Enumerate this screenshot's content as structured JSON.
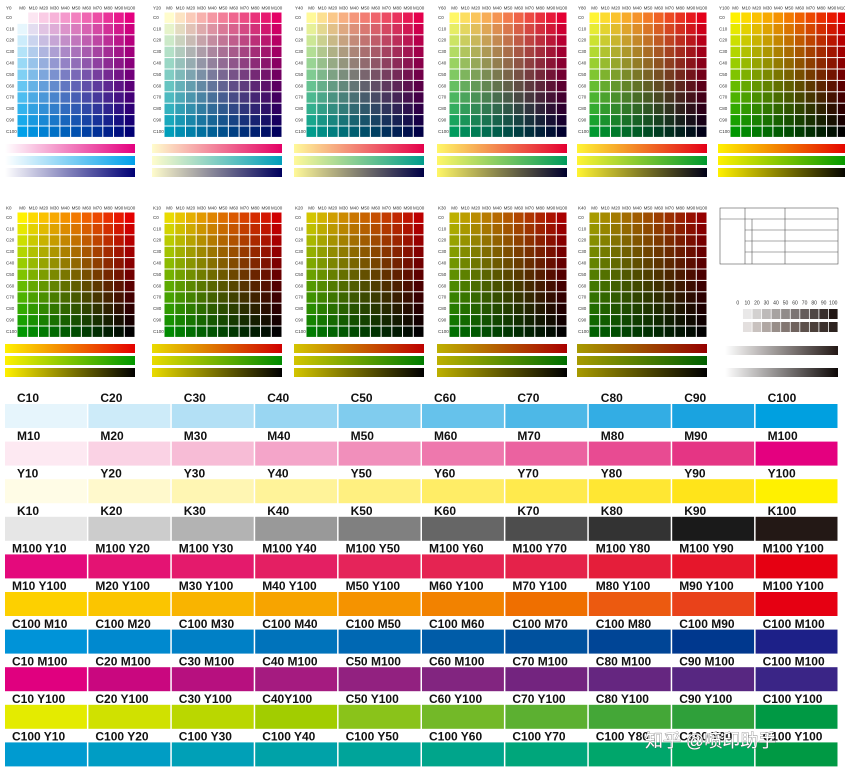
{
  "grid_sets": [
    {
      "column_channel": "M",
      "row_channel": "C",
      "fixed_channel": "Y",
      "fixed": {},
      "values": [
        0,
        10,
        20,
        30,
        40,
        50,
        60,
        70,
        80,
        90,
        100
      ],
      "column_labels": [
        "M0",
        "M10",
        "M20",
        "M30",
        "M40",
        "M50",
        "M60",
        "M70",
        "M80",
        "M90",
        "M100"
      ],
      "row_labels": [
        "C0",
        "C10",
        "C20",
        "C30",
        "C40",
        "C50",
        "C60",
        "C70",
        "C80",
        "C90",
        "C100"
      ],
      "grids": [
        {
          "value": 0,
          "label": "Y0"
        },
        {
          "value": 20,
          "label": "Y20"
        },
        {
          "value": 40,
          "label": "Y40"
        },
        {
          "value": 60,
          "label": "Y60"
        },
        {
          "value": 80,
          "label": "Y80"
        },
        {
          "value": 100,
          "label": "Y100"
        }
      ]
    },
    {
      "column_channel": "M",
      "row_channel": "C",
      "fixed_channel": "K",
      "fixed": {
        "Y": 100
      },
      "values": [
        0,
        10,
        20,
        30,
        40,
        50,
        60,
        70,
        80,
        90,
        100
      ],
      "column_labels": [
        "M0",
        "M10",
        "M20",
        "M30",
        "M40",
        "M50",
        "M60",
        "M70",
        "M80",
        "M90",
        "M100"
      ],
      "row_labels": [
        "C0",
        "C10",
        "C20",
        "C30",
        "C40",
        "C50",
        "C60",
        "C70",
        "C80",
        "C90",
        "C100"
      ],
      "grids": [
        {
          "value": 0,
          "label": "K0"
        },
        {
          "value": 10,
          "label": "K10"
        },
        {
          "value": 20,
          "label": "K20"
        },
        {
          "value": 30,
          "label": "K30"
        },
        {
          "value": 40,
          "label": "K40"
        }
      ]
    }
  ],
  "gray_scale": {
    "ticks": [
      0,
      10,
      20,
      30,
      40,
      50,
      60,
      70,
      80,
      90,
      100
    ]
  },
  "strips": [
    {
      "labels": [
        "C10",
        "C20",
        "C30",
        "C40",
        "C50",
        "C60",
        "C70",
        "C80",
        "C90",
        "C100"
      ],
      "colors": [
        "#e6f5fc",
        "#cdebf9",
        "#b3e0f5",
        "#99d6f2",
        "#80ccee",
        "#66c2eb",
        "#4db8e7",
        "#33ade4",
        "#1aa3e0",
        "#00a0e0"
      ]
    },
    {
      "labels": [
        "M10",
        "M20",
        "M30",
        "M40",
        "M50",
        "M60",
        "M70",
        "M80",
        "M90",
        "M100"
      ],
      "colors": [
        "#fde9f2",
        "#fad2e4",
        "#f7bcd6",
        "#f4a5c9",
        "#f18fbb",
        "#ee78ad",
        "#eb62a0",
        "#e84b92",
        "#e53584",
        "#e4007f"
      ]
    },
    {
      "labels": [
        "Y10",
        "Y20",
        "Y30",
        "Y40",
        "Y50",
        "Y60",
        "Y70",
        "Y80",
        "Y90",
        "Y100"
      ],
      "colors": [
        "#fffce6",
        "#fff9cc",
        "#fff6b3",
        "#fff399",
        "#fff080",
        "#ffed66",
        "#ffea4d",
        "#ffe733",
        "#ffe41a",
        "#fff100"
      ]
    },
    {
      "labels": [
        "K10",
        "K20",
        "K30",
        "K40",
        "K50",
        "K60",
        "K70",
        "K80",
        "K90",
        "K100"
      ],
      "colors": [
        "#e6e6e6",
        "#cccccc",
        "#b3b3b3",
        "#999999",
        "#808080",
        "#666666",
        "#4d4d4d",
        "#333333",
        "#1a1a1a",
        "#231815"
      ]
    },
    {
      "labels": [
        "M100 Y10",
        "M100 Y20",
        "M100 Y30",
        "M100 Y40",
        "M100 Y50",
        "M100 Y60",
        "M100 Y70",
        "M100 Y80",
        "M100 Y90",
        "M100 Y100"
      ],
      "colors": [
        "#e40a7c",
        "#e41373",
        "#e41a6c",
        "#e41f63",
        "#e5245a",
        "#e52452",
        "#e5224a",
        "#e51e3a",
        "#e6162b",
        "#e60012"
      ]
    },
    {
      "labels": [
        "M10 Y100",
        "M20 Y100",
        "M30 Y100",
        "M40 Y100",
        "M50 Y100",
        "M60 Y100",
        "M70 Y100",
        "M80 Y100",
        "M90 Y100",
        "M100 Y100"
      ],
      "colors": [
        "#fdd000",
        "#fbc500",
        "#f9b400",
        "#f7a400",
        "#f59300",
        "#f28200",
        "#ef6f00",
        "#ec5a10",
        "#e9421a",
        "#e60012"
      ]
    },
    {
      "labels": [
        "C100 M10",
        "C100 M20",
        "C100 M30",
        "C100 M40",
        "C100 M50",
        "C100 M60",
        "C100 M70",
        "C100 M80",
        "C100 M90",
        "C100 M100"
      ],
      "colors": [
        "#0093d8",
        "#0089cf",
        "#0080c6",
        "#0073bb",
        "#0068b3",
        "#005ca8",
        "#00519e",
        "#004596",
        "#00388e",
        "#1d2088"
      ]
    },
    {
      "labels": [
        "C10 M100",
        "C20 M100",
        "C30 M100",
        "C40 M100",
        "C50 M100",
        "C60 M100",
        "C70 M100",
        "C80 M100",
        "C90 M100",
        "C100 M100"
      ],
      "colors": [
        "#e0007f",
        "#c9077f",
        "#b7107f",
        "#a51b80",
        "#922180",
        "#822580",
        "#73247f",
        "#652680",
        "#572781",
        "#3a2586"
      ]
    },
    {
      "labels": [
        "C10 Y100",
        "C20 Y100",
        "C30 Y100",
        "C40Y100",
        "C50 Y100",
        "C60 Y100",
        "C70 Y100",
        "C80 Y100",
        "C90 Y100",
        "C100 Y100"
      ],
      "colors": [
        "#e4eb00",
        "#d0e100",
        "#bad700",
        "#a2cd00",
        "#8ac31a",
        "#73b928",
        "#5cb031",
        "#44a737",
        "#2fa03a",
        "#009944"
      ]
    },
    {
      "labels": [
        "C100 Y10",
        "C100 Y20",
        "C100 Y30",
        "C100 Y40",
        "C100 Y50",
        "C100 Y60",
        "C100 Y70",
        "C100 Y80",
        "C100 Y90",
        "C100 Y100"
      ],
      "colors": [
        "#009bd0",
        "#009dc4",
        "#00a0b7",
        "#00a2a8",
        "#00a49a",
        "#00a58b",
        "#00a67b",
        "#00a66b",
        "#00a65a",
        "#009944"
      ]
    }
  ],
  "watermark": "知乎 @喷印助手"
}
